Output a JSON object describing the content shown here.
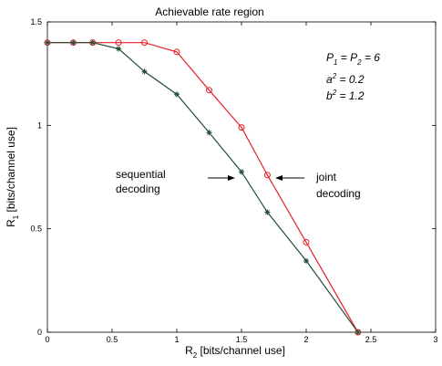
{
  "chart_data": {
    "type": "line",
    "title": "Achievable rate region",
    "xlabel": {
      "main": "R",
      "sub": "2",
      "rest": " [bits/channel use]"
    },
    "ylabel": {
      "main": "R",
      "sub": "1",
      "rest": " [bits/channel use]"
    },
    "xlim": [
      0,
      3
    ],
    "ylim": [
      0,
      1.5
    ],
    "xticks": [
      "0",
      "0.5",
      "1",
      "1.5",
      "2",
      "2.5",
      "3"
    ],
    "yticks": [
      "0",
      "0.5",
      "1",
      "1.5"
    ],
    "grid": false,
    "series": [
      {
        "name": "joint decoding",
        "color": "#e8202a",
        "marker": "circle",
        "x": [
          0,
          0.2,
          0.35,
          0.55,
          0.75,
          1.0,
          1.25,
          1.5,
          1.7,
          2.0,
          2.4
        ],
        "y": [
          1.4,
          1.4,
          1.4,
          1.4,
          1.4,
          1.355,
          1.17,
          0.99,
          0.76,
          0.435,
          0
        ]
      },
      {
        "name": "sequential decoding",
        "color": "#1f4d36",
        "marker": "star",
        "x": [
          0,
          0.2,
          0.35,
          0.55,
          0.75,
          1.0,
          1.25,
          1.5,
          1.7,
          2.0,
          2.4
        ],
        "y": [
          1.4,
          1.4,
          1.4,
          1.37,
          1.26,
          1.15,
          0.965,
          0.775,
          0.58,
          0.345,
          0
        ]
      }
    ],
    "annotations": {
      "sequential": [
        "sequential",
        "decoding"
      ],
      "joint": [
        "joint",
        "decoding"
      ],
      "params": {
        "line1": [
          "P",
          "1",
          " = P",
          "2",
          " = 6"
        ],
        "line2": [
          "a",
          "2",
          " = 0.2"
        ],
        "line3": [
          "b",
          "2",
          " = 1.2"
        ]
      }
    }
  }
}
